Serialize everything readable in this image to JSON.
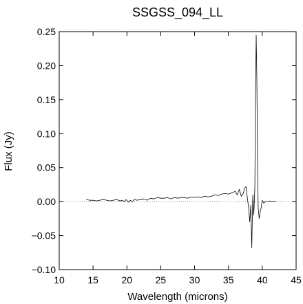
{
  "chart_data": {
    "type": "line",
    "title": "SSGSS_094_LL",
    "xlabel": "Wavelength (microns)",
    "ylabel": "Flux (Jy)",
    "xlim": [
      10,
      45
    ],
    "ylim": [
      -0.1,
      0.25
    ],
    "xticks": [
      10,
      15,
      20,
      25,
      30,
      35,
      40,
      45
    ],
    "xtick_labels": [
      "10",
      "15",
      "20",
      "25",
      "30",
      "35",
      "40",
      "45"
    ],
    "yticks": [
      -0.1,
      -0.05,
      0.0,
      0.05,
      0.1,
      0.15,
      0.2,
      0.25
    ],
    "ytick_labels": [
      "−0.10",
      "−0.05",
      "0.00",
      "0.05",
      "0.10",
      "0.15",
      "0.20",
      "0.25"
    ],
    "zero_line": true,
    "grid": false,
    "colors": {
      "line": "#000000",
      "zero_line": "#888888",
      "axes": "#000000"
    },
    "series": [
      {
        "x": [
          14.0,
          14.5,
          15.0,
          15.5,
          16.0,
          16.5,
          17.0,
          17.5,
          18.0,
          18.5,
          19.0,
          19.3,
          19.6,
          19.9,
          20.2,
          20.5,
          20.8,
          21.1,
          21.5,
          22.0,
          22.5,
          23.0,
          23.5,
          24.0,
          24.5,
          25.0,
          25.5,
          26.0,
          26.5,
          27.0,
          27.5,
          28.0,
          28.5,
          29.0,
          29.5,
          30.0,
          30.5,
          31.0,
          31.5,
          32.0,
          32.5,
          33.0,
          33.5,
          34.0,
          34.5,
          35.0,
          35.5,
          36.0,
          36.3,
          36.6,
          36.9,
          37.2,
          37.4,
          37.6,
          37.8,
          38.0,
          38.15,
          38.3,
          38.45,
          38.6,
          38.75,
          38.9,
          39.0,
          39.1,
          39.2,
          39.3,
          39.4,
          39.55,
          39.7,
          39.85,
          40.0,
          40.2,
          40.5,
          40.8,
          41.1,
          41.5,
          42.0
        ],
        "y": [
          0.003,
          0.002,
          0.002,
          0.001,
          0.002,
          0.003,
          0.002,
          0.001,
          0.002,
          0.003,
          0.001,
          0.002,
          0.0,
          0.003,
          -0.001,
          0.002,
          0.0,
          0.003,
          0.002,
          0.003,
          0.004,
          0.002,
          0.005,
          0.004,
          0.006,
          0.005,
          0.005,
          0.006,
          0.004,
          0.006,
          0.005,
          0.006,
          0.006,
          0.005,
          0.007,
          0.006,
          0.007,
          0.006,
          0.008,
          0.007,
          0.008,
          0.01,
          0.009,
          0.011,
          0.012,
          0.011,
          0.013,
          0.015,
          0.01,
          0.018,
          0.008,
          0.012,
          0.02,
          0.022,
          0.005,
          -0.01,
          -0.03,
          -0.005,
          -0.068,
          0.01,
          -0.02,
          0.02,
          0.15,
          0.245,
          0.18,
          0.06,
          -0.01,
          -0.025,
          -0.015,
          -0.008,
          0.002,
          -0.002,
          0.0,
          0.0,
          0.001,
          0.0,
          0.001
        ]
      }
    ]
  }
}
